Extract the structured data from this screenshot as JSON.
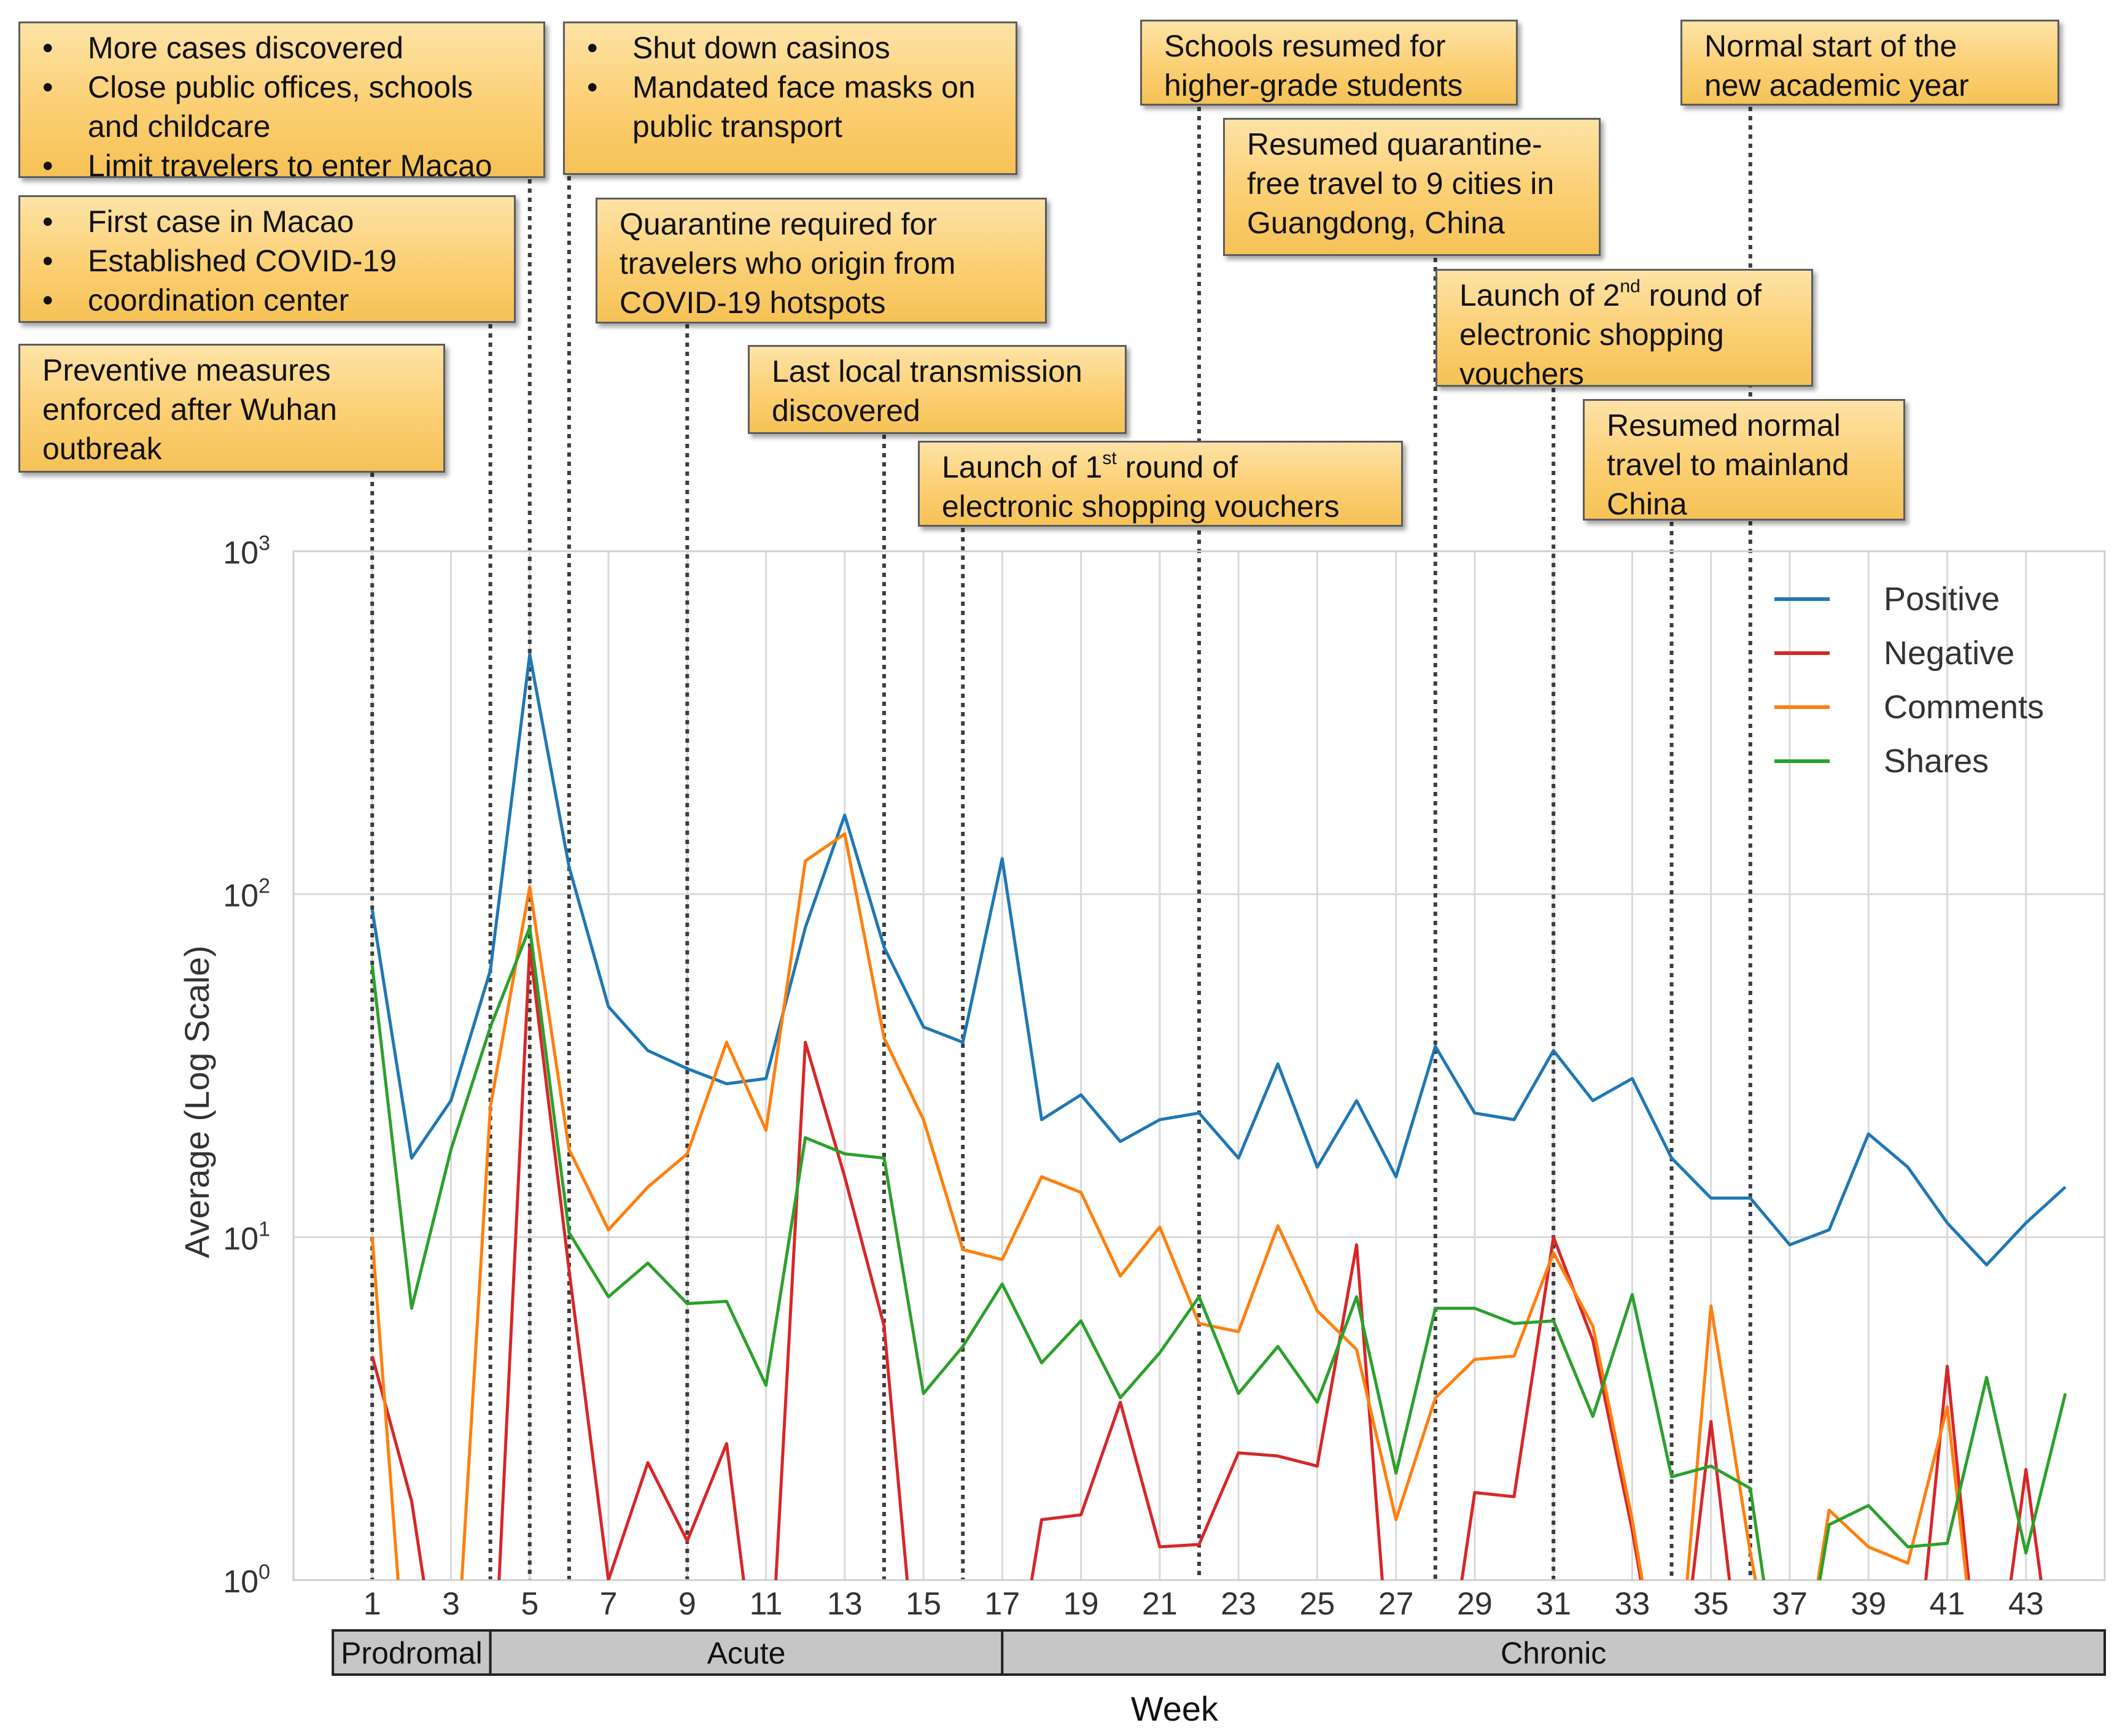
{
  "chart_data": {
    "type": "line",
    "title": "",
    "xlabel": "Week",
    "ylabel": "Average (Log Scale)",
    "y_scale": "log",
    "ylim": [
      1,
      1000
    ],
    "y_ticks": [
      1,
      10,
      100,
      1000
    ],
    "y_tick_labels": [
      {
        "base": "10",
        "exp": "0"
      },
      {
        "base": "10",
        "exp": "1"
      },
      {
        "base": "10",
        "exp": "2"
      },
      {
        "base": "10",
        "exp": "3"
      }
    ],
    "xlim": [
      -1,
      45
    ],
    "x_ticks": [
      1,
      3,
      5,
      7,
      9,
      11,
      13,
      15,
      17,
      19,
      21,
      23,
      25,
      27,
      29,
      31,
      33,
      35,
      37,
      39,
      41,
      43
    ],
    "grid": true,
    "legend_position": "top-right",
    "x": [
      1,
      2,
      3,
      4,
      5,
      6,
      7,
      8,
      9,
      10,
      11,
      12,
      13,
      14,
      15,
      16,
      17,
      18,
      19,
      20,
      21,
      22,
      23,
      24,
      25,
      26,
      27,
      28,
      29,
      30,
      31,
      32,
      33,
      34,
      35,
      36,
      37,
      38,
      39,
      40,
      41,
      42,
      43,
      44
    ],
    "series": [
      {
        "name": "Positive",
        "color": "#1f77b4",
        "values": [
          90,
          17,
          25,
          60,
          500,
          120,
          47,
          35,
          31,
          28,
          29,
          80,
          170,
          70,
          41,
          37,
          127,
          22,
          26,
          19,
          22,
          23,
          17,
          32,
          16,
          25,
          15,
          36,
          23,
          22,
          35,
          25,
          29,
          17,
          13,
          13,
          9.5,
          10.5,
          20,
          16,
          11,
          8.3,
          11,
          14
        ]
      },
      {
        "name": "Negative",
        "color": "#d62728",
        "values": [
          4.5,
          1.7,
          null,
          null,
          70,
          8,
          1.0,
          2.2,
          1.3,
          2.5,
          null,
          37,
          15,
          5.5,
          null,
          null,
          null,
          1.5,
          1.55,
          3.3,
          1.25,
          1.27,
          2.35,
          2.3,
          2.15,
          9.5,
          null,
          null,
          1.8,
          1.75,
          10,
          5,
          1.4,
          null,
          2.9,
          null,
          null,
          null,
          null,
          null,
          4.2,
          null,
          2.1,
          null
        ]
      },
      {
        "name": "Comments",
        "color": "#ff7f0e",
        "values": [
          10,
          null,
          null,
          24,
          105,
          18,
          10.5,
          14,
          17.5,
          37,
          20.5,
          125,
          150,
          38,
          22,
          9.2,
          8.6,
          15,
          13.5,
          7.7,
          10.7,
          5.6,
          5.3,
          10.8,
          6.1,
          4.7,
          1.5,
          3.4,
          4.4,
          4.5,
          9,
          5.5,
          1.5,
          null,
          6.3,
          1.2,
          null,
          1.6,
          1.25,
          1.12,
          3.2,
          null,
          null,
          null
        ]
      },
      {
        "name": "Shares",
        "color": "#2ca02c",
        "values": [
          62,
          6.2,
          18,
          41,
          80,
          10.3,
          6.7,
          8.4,
          6.4,
          6.5,
          3.7,
          19.5,
          17.5,
          17,
          3.5,
          4.8,
          7.3,
          4.3,
          5.7,
          3.4,
          4.6,
          6.7,
          3.5,
          4.8,
          3.3,
          6.7,
          2.05,
          6.2,
          6.2,
          5.6,
          5.7,
          3,
          6.8,
          2,
          2.15,
          1.85,
          null,
          1.45,
          1.65,
          1.25,
          1.28,
          3.9,
          1.2,
          3.5
        ]
      }
    ],
    "event_lines": [
      1,
      4,
      5,
      6,
      9,
      14,
      16,
      22,
      28,
      31,
      34,
      36
    ],
    "phases": [
      {
        "label": "Prodromal",
        "start_week": 0,
        "end_week": 4
      },
      {
        "label": "Acute",
        "start_week": 4,
        "end_week": 17
      },
      {
        "label": "Chronic",
        "start_week": 17,
        "end_week": 45
      }
    ],
    "annotations": [
      {
        "id": "prev",
        "week": 1,
        "lines": [
          "Preventive measures",
          "enforced after Wuhan",
          "outbreak"
        ]
      },
      {
        "id": "first",
        "week": 4,
        "bullets": [
          "First case in Macao",
          "Established COVID-19",
          "coordination center"
        ]
      },
      {
        "id": "more",
        "week": 5,
        "bullets": [
          "More cases discovered",
          "Close public offices, schools and childcare",
          "Limit travelers to enter Macao"
        ]
      },
      {
        "id": "casino",
        "week": 6,
        "bullets": [
          "Shut down casinos",
          "Mandated face masks on public transport"
        ]
      },
      {
        "id": "quar",
        "week": 9,
        "lines": [
          "Quarantine required for",
          "travelers who origin from",
          "COVID-19 hotspots"
        ]
      },
      {
        "id": "last",
        "week": 14,
        "lines": [
          "Last local transmission",
          "discovered"
        ]
      },
      {
        "id": "v1",
        "week": 16,
        "pre": "Launch of 1",
        "sup": "st",
        "post": " round of",
        "line2": "electronic shopping vouchers"
      },
      {
        "id": "school",
        "week": 22,
        "lines": [
          "Schools resumed for",
          "higher-grade students"
        ]
      },
      {
        "id": "gd",
        "week": 28,
        "lines": [
          "Resumed quarantine-",
          "free travel to 9 cities in",
          "Guangdong, China"
        ]
      },
      {
        "id": "v2",
        "week": 31,
        "pre": "Launch of 2",
        "sup": "nd",
        "post": " round of",
        "line2": "electronic shopping",
        "line3": "vouchers"
      },
      {
        "id": "mainland",
        "week": 34,
        "lines": [
          "Resumed normal",
          "travel to mainland",
          "China"
        ]
      },
      {
        "id": "acad",
        "week": 36,
        "lines": [
          "Normal start of the",
          "new academic year"
        ]
      }
    ]
  }
}
